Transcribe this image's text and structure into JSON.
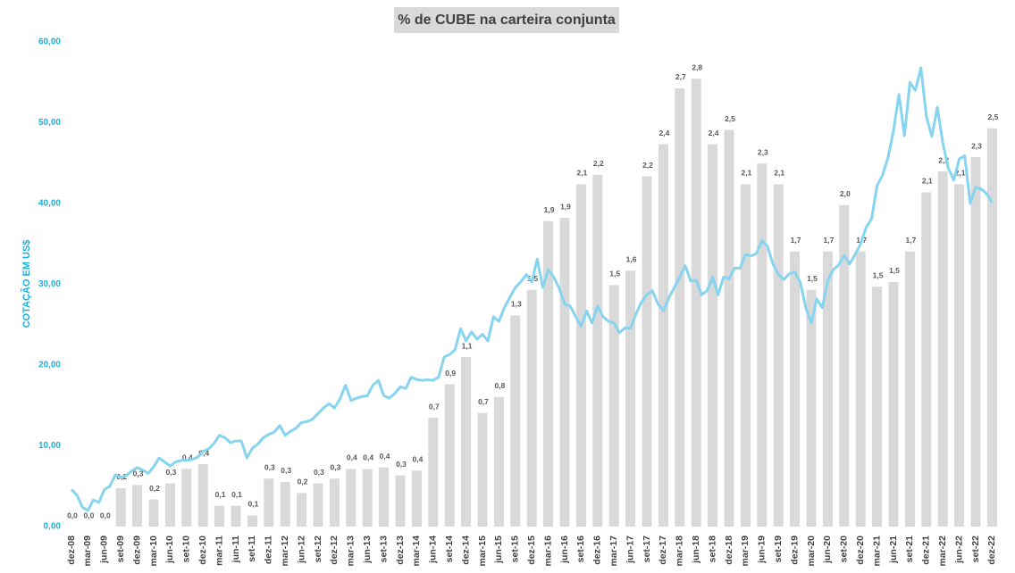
{
  "chart_data": {
    "type": "bar-line",
    "title": "% de CUBE na carteira conjunta",
    "y_label": "COTAÇÃO EM US$",
    "ylim": [
      0,
      60
    ],
    "yticks": [
      {
        "value": 0,
        "label": "0,00"
      },
      {
        "value": 10,
        "label": "10,00"
      },
      {
        "value": 20,
        "label": "20,00"
      },
      {
        "value": 30,
        "label": "30,00"
      },
      {
        "value": 40,
        "label": "40,00"
      },
      {
        "value": 50,
        "label": "50,00"
      },
      {
        "value": 60,
        "label": "60,00"
      }
    ],
    "y2lim": [
      0,
      3.03
    ],
    "categories": [
      "dez-08",
      null,
      null,
      "mar-09",
      null,
      null,
      "jun-09",
      null,
      null,
      "set-09",
      null,
      null,
      "dez-09",
      null,
      null,
      "mar-10",
      null,
      null,
      "jun-10",
      null,
      null,
      "set-10",
      null,
      null,
      "dez-10",
      null,
      null,
      "mar-11",
      null,
      null,
      "jun-11",
      null,
      null,
      "set-11",
      null,
      null,
      "dez-11",
      null,
      null,
      "mar-12",
      null,
      null,
      "jun-12",
      null,
      null,
      "set-12",
      null,
      null,
      "dez-12",
      null,
      null,
      "mar-13",
      null,
      null,
      "jun-13",
      null,
      null,
      "set-13",
      null,
      null,
      "dez-13",
      null,
      null,
      "mar-14",
      null,
      null,
      "jun-14",
      null,
      null,
      "set-14",
      null,
      null,
      "dez-14",
      null,
      null,
      "mar-15",
      null,
      null,
      "jun-15",
      null,
      null,
      "set-15",
      null,
      null,
      "dez-15",
      null,
      null,
      "mar-16",
      null,
      null,
      "jun-16",
      null,
      null,
      "set-16",
      null,
      null,
      "dez-16",
      null,
      null,
      "mar-17",
      null,
      null,
      "jun-17",
      null,
      null,
      "set-17",
      null,
      null,
      "dez-17",
      null,
      null,
      "mar-18",
      null,
      null,
      "jun-18",
      null,
      null,
      "set-18",
      null,
      null,
      "dez-18",
      null,
      null,
      "mar-19",
      null,
      null,
      "jun-19",
      null,
      null,
      "set-19",
      null,
      null,
      "dez-19",
      null,
      null,
      "mar-20",
      null,
      null,
      "jun-20",
      null,
      null,
      "set-20",
      null,
      null,
      "dez-20",
      null,
      null,
      "mar-21",
      null,
      null,
      "jun-21",
      null,
      null,
      "set-21",
      null,
      null,
      "dez-21",
      null,
      null,
      "mar-22",
      null,
      null,
      "jun-22",
      null,
      null,
      "set-22",
      null,
      null,
      "dez-22"
    ],
    "series": [
      {
        "type": "bar",
        "axis": "y2",
        "color": "#d9d9d9",
        "values": [
          0,
          null,
          null,
          0,
          null,
          null,
          0,
          null,
          null,
          0.24,
          null,
          null,
          0.26,
          null,
          null,
          0.17,
          null,
          null,
          0.27,
          null,
          null,
          0.36,
          null,
          null,
          0.39,
          null,
          null,
          0.13,
          null,
          null,
          0.13,
          null,
          null,
          0.07,
          null,
          null,
          0.3,
          null,
          null,
          0.28,
          null,
          null,
          0.21,
          null,
          null,
          0.27,
          null,
          null,
          0.3,
          null,
          null,
          0.36,
          null,
          null,
          0.36,
          null,
          null,
          0.37,
          null,
          null,
          0.32,
          null,
          null,
          0.35,
          null,
          null,
          0.68,
          null,
          null,
          0.89,
          null,
          null,
          1.06,
          null,
          null,
          0.71,
          null,
          null,
          0.81,
          null,
          null,
          1.32,
          null,
          null,
          1.48,
          null,
          null,
          1.91,
          null,
          null,
          1.93,
          null,
          null,
          2.14,
          null,
          null,
          2.2,
          null,
          null,
          1.51,
          null,
          null,
          1.6,
          null,
          null,
          2.19,
          null,
          null,
          2.39,
          null,
          null,
          2.74,
          null,
          null,
          2.8,
          null,
          null,
          2.39,
          null,
          null,
          2.48,
          null,
          null,
          2.14,
          null,
          null,
          2.27,
          null,
          null,
          2.14,
          null,
          null,
          1.72,
          null,
          null,
          1.48,
          null,
          null,
          1.72,
          null,
          null,
          2.01,
          null,
          null,
          1.72,
          null,
          null,
          1.5,
          null,
          null,
          1.53,
          null,
          null,
          1.72,
          null,
          null,
          2.09,
          null,
          null,
          2.22,
          null,
          null,
          2.14,
          null,
          null,
          2.31,
          null,
          null,
          2.49
        ],
        "value_labels": [
          "0,0",
          null,
          null,
          "0,0",
          null,
          null,
          "0,0",
          null,
          null,
          "0,2",
          null,
          null,
          "0,3",
          null,
          null,
          "0,2",
          null,
          null,
          "0,3",
          null,
          null,
          "0,4",
          null,
          null,
          "0,4",
          null,
          null,
          "0,1",
          null,
          null,
          "0,1",
          null,
          null,
          "0,1",
          null,
          null,
          "0,3",
          null,
          null,
          "0,3",
          null,
          null,
          "0,2",
          null,
          null,
          "0,3",
          null,
          null,
          "0,3",
          null,
          null,
          "0,4",
          null,
          null,
          "0,4",
          null,
          null,
          "0,4",
          null,
          null,
          "0,3",
          null,
          null,
          "0,4",
          null,
          null,
          "0,7",
          null,
          null,
          "0,9",
          null,
          null,
          "1,1",
          null,
          null,
          "0,7",
          null,
          null,
          "0,8",
          null,
          null,
          "1,3",
          null,
          null,
          "1,5",
          null,
          null,
          "1,9",
          null,
          null,
          "1,9",
          null,
          null,
          "2,1",
          null,
          null,
          "2,2",
          null,
          null,
          "1,5",
          null,
          null,
          "1,6",
          null,
          null,
          "2,2",
          null,
          null,
          "2,4",
          null,
          null,
          "2,7",
          null,
          null,
          "2,8",
          null,
          null,
          "2,4",
          null,
          null,
          "2,5",
          null,
          null,
          "2,1",
          null,
          null,
          "2,3",
          null,
          null,
          "2,1",
          null,
          null,
          "1,7",
          null,
          null,
          "1,5",
          null,
          null,
          "1,7",
          null,
          null,
          "2,0",
          null,
          null,
          "1,7",
          null,
          null,
          "1,5",
          null,
          null,
          "1,5",
          null,
          null,
          "1,7",
          null,
          null,
          "2,1",
          null,
          null,
          "2,2",
          null,
          null,
          "2,1",
          null,
          null,
          "2,3",
          null,
          null,
          "2,5"
        ]
      },
      {
        "type": "line",
        "color": "#86d4ef",
        "values": [
          4.6,
          3.9,
          2.4,
          2.0,
          3.3,
          3.0,
          4.6,
          5.0,
          6.4,
          6.1,
          6.3,
          6.9,
          7.3,
          7.0,
          6.6,
          7.4,
          8.5,
          8.0,
          7.5,
          8.0,
          8.2,
          8.2,
          8.3,
          8.6,
          9.3,
          9.6,
          10.3,
          11.3,
          11.0,
          10.4,
          10.6,
          10.6,
          8.5,
          9.7,
          10.2,
          11.0,
          11.4,
          11.7,
          12.5,
          11.3,
          11.8,
          12.2,
          12.9,
          13.0,
          13.3,
          14.0,
          14.7,
          15.2,
          14.7,
          15.8,
          17.5,
          15.6,
          15.9,
          16.1,
          16.2,
          17.5,
          18.1,
          16.2,
          15.9,
          16.5,
          17.3,
          17.1,
          18.5,
          18.2,
          18.1,
          18.2,
          18.1,
          18.5,
          21.0,
          21.3,
          21.9,
          24.5,
          23.0,
          24.1,
          23.2,
          23.8,
          23.0,
          26.0,
          25.4,
          27.1,
          28.4,
          29.6,
          30.3,
          31.2,
          30.3,
          33.1,
          29.6,
          31.8,
          30.9,
          29.5,
          27.5,
          27.3,
          26.0,
          24.8,
          26.7,
          25.2,
          27.3,
          26.0,
          25.4,
          25.2,
          24.0,
          24.6,
          24.6,
          26.3,
          27.8,
          28.7,
          29.2,
          27.6,
          26.7,
          28.3,
          29.6,
          30.9,
          32.3,
          30.4,
          30.5,
          28.7,
          29.2,
          30.9,
          28.7,
          30.9,
          30.7,
          32.0,
          32.0,
          33.7,
          33.5,
          33.8,
          35.4,
          34.7,
          32.5,
          31.2,
          30.6,
          31.3,
          31.5,
          30.2,
          27.1,
          25.2,
          28.2,
          27.1,
          30.4,
          31.8,
          32.4,
          33.6,
          32.5,
          33.7,
          35.0,
          37.0,
          38.1,
          42.2,
          43.5,
          45.7,
          49.0,
          53.5,
          48.4,
          55.0,
          54.0,
          56.8,
          50.8,
          48.3,
          51.9,
          47.5,
          44.4,
          42.9,
          45.5,
          45.9,
          40.0,
          42.0,
          41.8,
          41.2,
          40.1
        ]
      }
    ]
  }
}
